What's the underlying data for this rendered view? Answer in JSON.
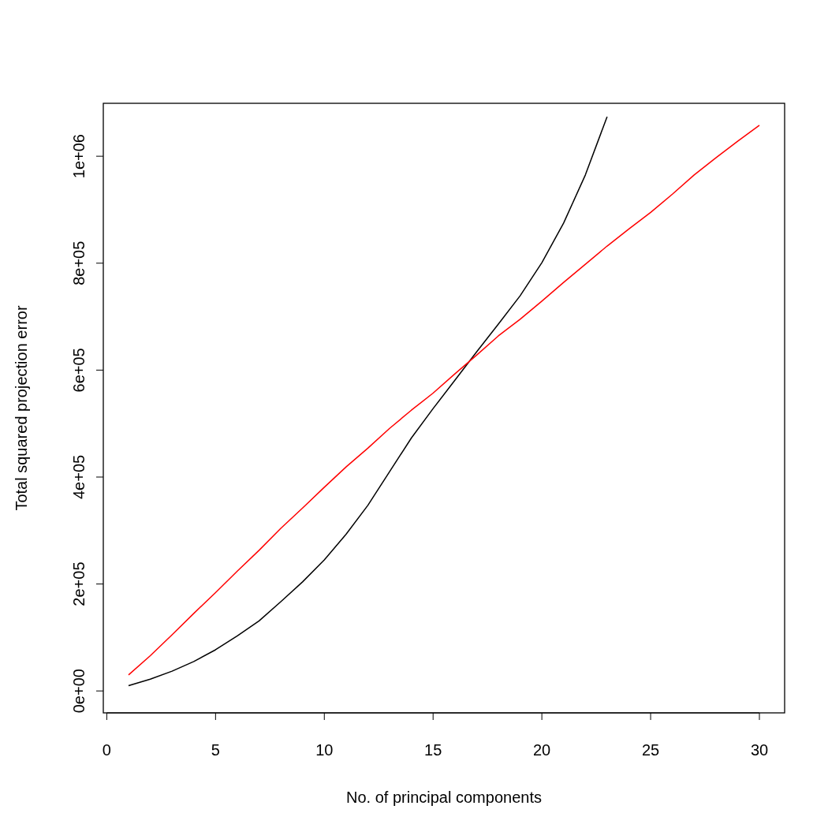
{
  "chart_data": {
    "type": "line",
    "xlabel": "No. of principal components",
    "ylabel": "Total squared projection error",
    "x": [
      1,
      2,
      3,
      4,
      5,
      6,
      7,
      8,
      9,
      10,
      11,
      12,
      13,
      14,
      15,
      16,
      17,
      18,
      19,
      20,
      21,
      22,
      23,
      24,
      25,
      26,
      27,
      28,
      29,
      30
    ],
    "series": [
      {
        "color": "#000000",
        "values": [
          10000,
          22000,
          37000,
          55000,
          77000,
          103000,
          131000,
          167000,
          204000,
          245000,
          293000,
          347000,
          410000,
          473000,
          528000,
          581000,
          634000,
          686000,
          739000,
          801000,
          875000,
          965000,
          1074000,
          null,
          null,
          null,
          null,
          null,
          null,
          null
        ]
      },
      {
        "color": "#ff0000",
        "values": [
          30000,
          66000,
          105000,
          145000,
          184000,
          224000,
          263000,
          304000,
          342000,
          381000,
          419000,
          454000,
          491000,
          525000,
          557000,
          593000,
          628000,
          664000,
          695000,
          729000,
          764000,
          798000,
          832000,
          864000,
          895000,
          929000,
          965000,
          997000,
          1028000,
          1058000
        ]
      }
    ],
    "xlim": [
      -0.16,
      31.16
    ],
    "ylim": [
      -41000,
      1099000
    ],
    "xticks": [
      0,
      5,
      10,
      15,
      20,
      25,
      30
    ],
    "yticks": [
      {
        "value": 0,
        "label": "0e+00"
      },
      {
        "value": 200000,
        "label": "2e+05"
      },
      {
        "value": 400000,
        "label": "4e+05"
      },
      {
        "value": 600000,
        "label": "6e+05"
      },
      {
        "value": 800000,
        "label": "8e+05"
      },
      {
        "value": 1000000,
        "label": "1e+06"
      }
    ],
    "grid": false,
    "marker": "none",
    "line_style": "solid"
  }
}
